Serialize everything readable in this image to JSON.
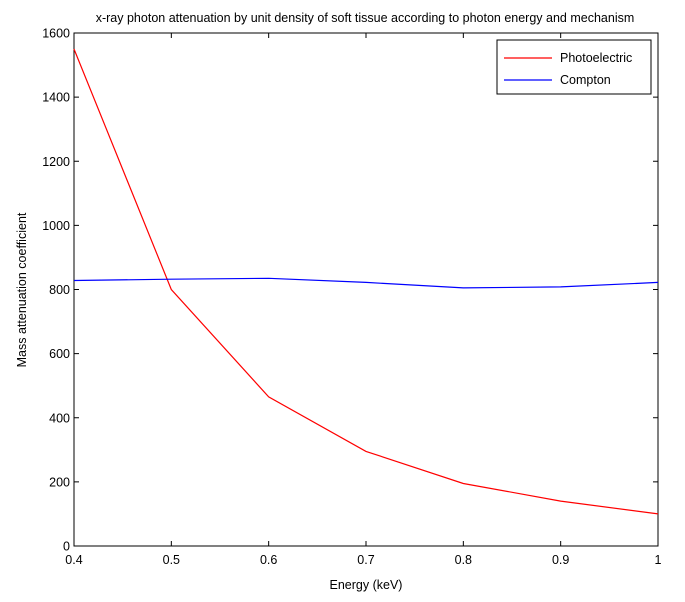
{
  "chart_data": {
    "type": "line",
    "title": "x-ray photon attenuation by unit density of soft tissue according to photon energy and mechanism",
    "xlabel": "Energy (keV)",
    "ylabel": "Mass attenuation coefficient",
    "xlim": [
      0.4,
      1.0
    ],
    "ylim": [
      0,
      1600
    ],
    "xticks": [
      0.4,
      0.5,
      0.6,
      0.7,
      0.8,
      0.9,
      1.0
    ],
    "xtick_labels": [
      "0.4",
      "0.5",
      "0.6",
      "0.7",
      "0.8",
      "0.9",
      "1"
    ],
    "yticks": [
      0,
      200,
      400,
      600,
      800,
      1000,
      1200,
      1400,
      1600
    ],
    "ytick_labels": [
      "0",
      "200",
      "400",
      "600",
      "800",
      "1000",
      "1200",
      "1400",
      "1600"
    ],
    "grid": false,
    "legend_position": "top-right",
    "series": [
      {
        "name": "Photoelectric",
        "color": "#ff0000",
        "x": [
          0.4,
          0.5,
          0.6,
          0.7,
          0.8,
          0.9,
          1.0
        ],
        "y": [
          1550,
          800,
          465,
          295,
          195,
          140,
          100
        ]
      },
      {
        "name": "Compton",
        "color": "#0000ff",
        "x": [
          0.4,
          0.5,
          0.6,
          0.7,
          0.8,
          0.9,
          1.0
        ],
        "y": [
          828,
          832,
          835,
          822,
          805,
          808,
          822
        ]
      }
    ]
  }
}
